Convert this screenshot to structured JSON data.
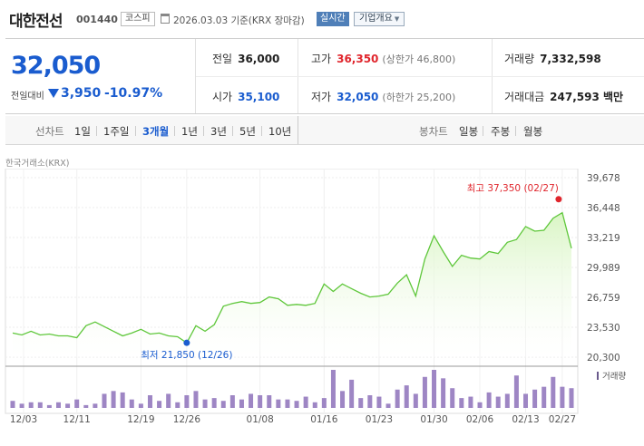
{
  "header": {
    "name": "대한전선",
    "code": "001440",
    "market": "코스피",
    "calendar_icon": "calendar-icon",
    "base_date": "2026.03.03 기준(KRX 장마감)",
    "realtime_label": "실시간",
    "company_label": "기업개요"
  },
  "price": {
    "current": "32,050",
    "change_label": "전일대비",
    "change_amount": "3,950",
    "change_rate": "-10.97%",
    "direction_icon": "down-triangle-icon",
    "down_color": "#1a5ccf",
    "up_color": "#e0262d"
  },
  "stats": {
    "prev_close_label": "전일",
    "prev_close": "36,000",
    "high_label": "고가",
    "high": "36,350",
    "upper_limit": "(상한가 46,800)",
    "volume_label": "거래량",
    "volume": "7,332,598",
    "open_label": "시가",
    "open": "35,100",
    "low_label": "저가",
    "low": "32,050",
    "lower_limit": "(하한가 25,200)",
    "amount_label": "거래대금",
    "amount": "247,593 백만"
  },
  "periods": {
    "line_label": "선차트",
    "items": [
      "1일",
      "1주일",
      "3개월",
      "1년",
      "3년",
      "5년",
      "10년"
    ],
    "active": "3개월",
    "candle_label": "봉차트",
    "candle_items": [
      "일봉",
      "주봉",
      "월봉"
    ]
  },
  "source": "한국거래소(KRX)",
  "chart_data": {
    "type": "area",
    "color_line": "#5fc73b",
    "color_fill": "#d9f5c4",
    "volume_color": "#9e86c4",
    "y_ticks": [
      "39,678",
      "36,448",
      "33,219",
      "29,989",
      "26,759",
      "23,530",
      "20,300"
    ],
    "ylim": [
      20300,
      39678
    ],
    "x_ticks": [
      "12/03",
      "12/11",
      "12/19",
      "12/26",
      "01/08",
      "01/16",
      "01/23",
      "01/30",
      "02/06",
      "02/13",
      "02/27"
    ],
    "max_label": "최고 37,350 (02/27)",
    "min_label": "최저 21,850 (12/26)",
    "max_value": 37350,
    "min_value": 21850,
    "volume_label": "거래량",
    "prices": [
      22900,
      22700,
      23100,
      22700,
      22800,
      22600,
      22600,
      22400,
      23700,
      24100,
      23600,
      23100,
      22600,
      22900,
      23300,
      22800,
      22900,
      22600,
      22500,
      21850,
      23700,
      23100,
      23800,
      25800,
      26100,
      26300,
      26100,
      26200,
      26800,
      26600,
      25900,
      26000,
      25900,
      26100,
      28200,
      27400,
      28200,
      27700,
      27200,
      26800,
      26900,
      27100,
      28300,
      29200,
      26900,
      30900,
      33400,
      31700,
      30100,
      31300,
      31000,
      30900,
      31700,
      31500,
      32700,
      33000,
      34400,
      33900,
      34000,
      35300,
      35900,
      32050
    ],
    "volumes": [
      5,
      3,
      4,
      4,
      2,
      4,
      3,
      6,
      2,
      3,
      10,
      12,
      11,
      6,
      3,
      9,
      5,
      10,
      4,
      9,
      12,
      6,
      7,
      5,
      9,
      6,
      10,
      9,
      9,
      6,
      6,
      5,
      8,
      4,
      7,
      27,
      12,
      20,
      7,
      9,
      8,
      3,
      13,
      16,
      10,
      22,
      27,
      21,
      14,
      7,
      8,
      4,
      11,
      8,
      10,
      23,
      10,
      13,
      15,
      22,
      15,
      14
    ]
  }
}
